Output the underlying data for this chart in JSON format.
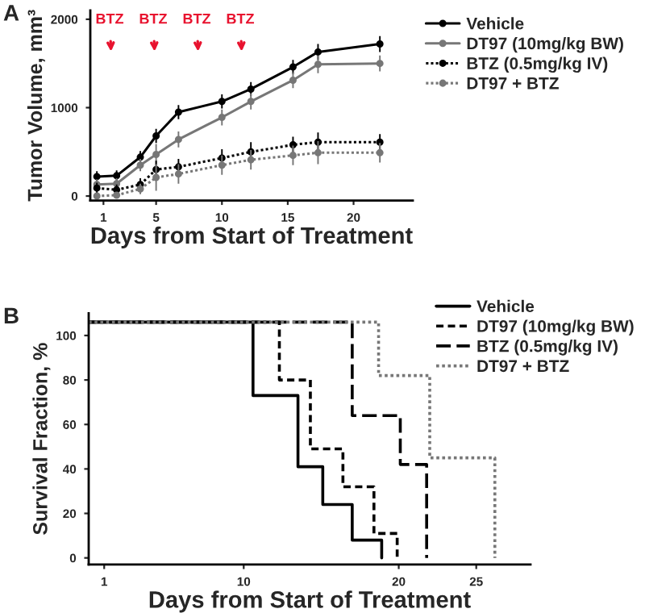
{
  "chart_data": [
    {
      "type": "line",
      "title": "A",
      "xlabel": "Days from Start of Treatment",
      "ylabel": "Tumor Volume, mm³",
      "x": [
        0.5,
        2,
        3.8,
        5,
        6.7,
        10,
        12.2,
        15.4,
        17.3,
        22
      ],
      "xlim": [
        0,
        24.5
      ],
      "xticks": [
        1,
        5,
        10,
        15,
        20
      ],
      "ylim": [
        -50,
        2100
      ],
      "yticks": [
        0,
        1000,
        2000
      ],
      "grid": false,
      "legend": "right",
      "marker": "circle",
      "series": [
        {
          "name": "Vehicle",
          "color": "#000000",
          "line_style": "solid",
          "values": [
            220,
            230,
            440,
            680,
            950,
            1070,
            1210,
            1460,
            1630,
            1720
          ],
          "errors": [
            60,
            60,
            70,
            80,
            80,
            80,
            80,
            80,
            90,
            90
          ]
        },
        {
          "name": "DT97 (10mg/kg BW)",
          "color": "#777777",
          "line_style": "solid",
          "values": [
            130,
            140,
            350,
            470,
            640,
            890,
            1070,
            1310,
            1490,
            1500
          ],
          "errors": [
            60,
            60,
            70,
            120,
            90,
            90,
            90,
            90,
            100,
            90
          ]
        },
        {
          "name": "BTZ (0.5mg/kg IV)",
          "color": "#000000",
          "line_style": "dotted",
          "values": [
            90,
            70,
            130,
            300,
            330,
            430,
            500,
            580,
            610,
            610
          ],
          "errors": [
            60,
            60,
            70,
            100,
            90,
            100,
            110,
            90,
            110,
            90
          ]
        },
        {
          "name": "DT97 + BTZ",
          "color": "#777777",
          "line_style": "dotted",
          "values": [
            0,
            10,
            80,
            210,
            250,
            350,
            410,
            460,
            490,
            490
          ],
          "errors": [
            null,
            null,
            60,
            150,
            110,
            110,
            110,
            110,
            130,
            110
          ]
        }
      ],
      "annotations": [
        "BTZ",
        "BTZ",
        "BTZ",
        "BTZ"
      ]
    },
    {
      "type": "step",
      "title": "B",
      "xlabel": "Days from Start of Treatment",
      "ylabel": "Survival Fraction, %",
      "xlim": [
        0,
        28.5
      ],
      "xticks": [
        1,
        10,
        20,
        25
      ],
      "ylim": [
        -3,
        110
      ],
      "yticks": [
        0,
        20,
        40,
        60,
        80,
        100
      ],
      "grid": false,
      "legend": "top right",
      "marker": "none",
      "series": [
        {
          "name": "Vehicle",
          "color": "#000000",
          "line_style": "solid",
          "x": [
            0,
            10.6,
            13.5,
            15.1,
            17.0,
            18.9
          ],
          "values": [
            106,
            73,
            41,
            24,
            8,
            0
          ]
        },
        {
          "name": "DT97 (10mg/kg BW)",
          "color": "#000000",
          "line_style": "dashed",
          "x": [
            0,
            12.3,
            14.3,
            16.4,
            18.4,
            19.9
          ],
          "values": [
            106,
            80,
            49,
            32,
            11,
            0
          ]
        },
        {
          "name": "BTZ (0.5mg/kg IV)",
          "color": "#000000",
          "line_style": "long dashed",
          "x": [
            0,
            17.0,
            20.1,
            21.8
          ],
          "values": [
            106,
            64,
            42,
            0
          ]
        },
        {
          "name": "DT97 + BTZ",
          "color": "#777777",
          "line_style": "dotted",
          "x": [
            0,
            18.7,
            22.0,
            26.2
          ],
          "values": [
            106,
            82,
            45,
            0
          ]
        }
      ]
    }
  ]
}
